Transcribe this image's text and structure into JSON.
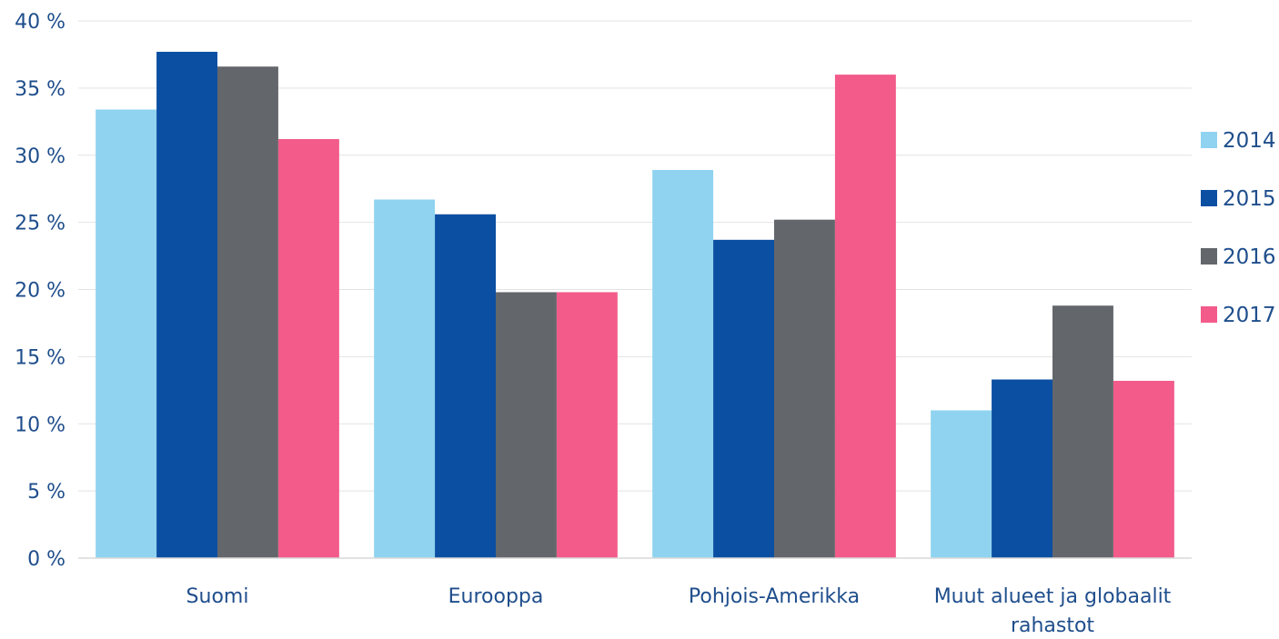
{
  "chart_data": {
    "type": "bar",
    "title": "",
    "xlabel": "",
    "ylabel": "",
    "ylim": [
      0,
      40
    ],
    "yticks": [
      0,
      5,
      10,
      15,
      20,
      25,
      30,
      35,
      40
    ],
    "ytick_labels": [
      "0 %",
      "5 %",
      "10 %",
      "15 %",
      "20 %",
      "25 %",
      "30 %",
      "35 %",
      "40 %"
    ],
    "grid": true,
    "legend_position": "right",
    "categories": [
      [
        "Suomi"
      ],
      [
        "Eurooppa"
      ],
      [
        "Pohjois-Amerikka"
      ],
      [
        "Muut alueet ja globaalit",
        "rahastot"
      ]
    ],
    "series": [
      {
        "name": "2014",
        "color": "#8fd3f0",
        "values": [
          33.4,
          26.7,
          28.9,
          11.0
        ]
      },
      {
        "name": "2015",
        "color": "#0b4fa3",
        "values": [
          37.7,
          25.6,
          23.7,
          13.3
        ]
      },
      {
        "name": "2016",
        "color": "#63676b",
        "values": [
          36.6,
          19.8,
          25.2,
          18.8
        ]
      },
      {
        "name": "2017",
        "color": "#f25b8a",
        "values": [
          31.2,
          19.8,
          36.0,
          13.2
        ]
      }
    ]
  }
}
